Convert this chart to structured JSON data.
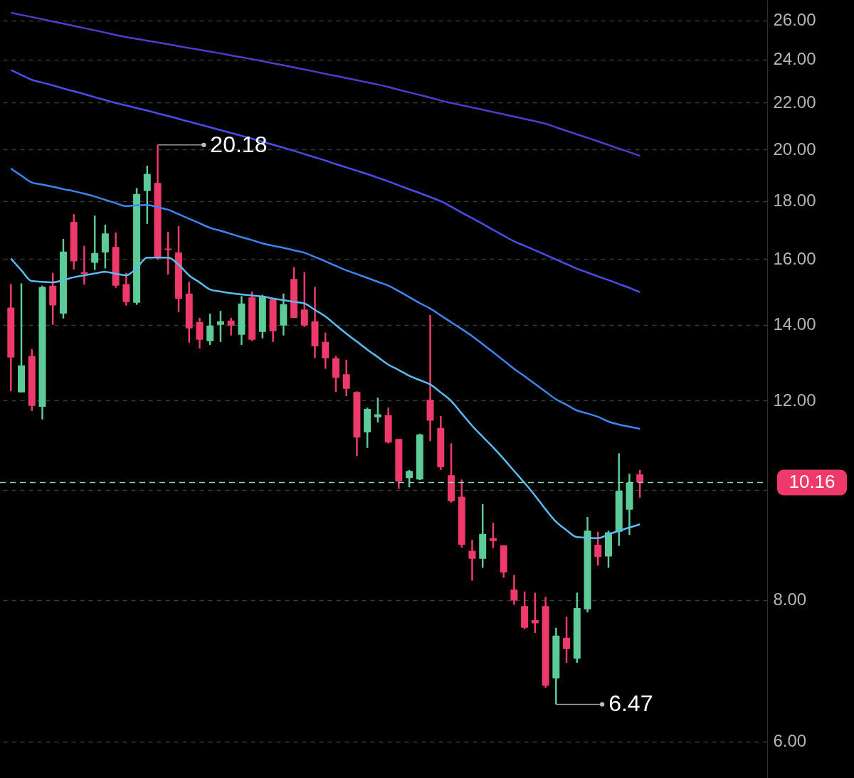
{
  "chart_data": {
    "type": "candlestick",
    "categories": [
      null,
      null,
      null,
      null,
      null,
      null,
      null,
      null,
      null,
      null,
      null,
      null,
      null,
      null,
      null,
      null,
      null,
      null,
      null,
      null,
      null,
      null,
      null,
      null,
      null,
      null,
      null,
      null,
      null,
      null,
      null,
      null,
      null,
      null,
      null,
      null,
      null,
      null,
      null,
      null,
      null,
      null,
      null,
      null,
      null,
      null,
      null,
      null,
      null,
      null,
      null,
      null,
      null,
      null,
      null,
      null,
      null,
      null,
      null,
      null,
      null
    ],
    "ohlc": [
      [
        14.5,
        15.21,
        12.23,
        13.1
      ],
      [
        12.2,
        15.23,
        12.2,
        12.89
      ],
      [
        13.14,
        13.32,
        11.75,
        11.87
      ],
      [
        11.85,
        15.16,
        11.55,
        15.12
      ],
      [
        15.16,
        15.56,
        14.0,
        14.56
      ],
      [
        14.32,
        16.67,
        14.18,
        16.25
      ],
      [
        17.26,
        17.53,
        15.67,
        15.93
      ],
      [
        15.58,
        16.44,
        15.19,
        15.53
      ],
      [
        15.88,
        17.48,
        15.65,
        16.2
      ],
      [
        16.22,
        17.16,
        15.7,
        16.86
      ],
      [
        16.4,
        16.89,
        15.09,
        15.16
      ],
      [
        15.21,
        15.56,
        14.56,
        14.66
      ],
      [
        14.64,
        18.49,
        14.58,
        18.27
      ],
      [
        18.38,
        19.35,
        17.19,
        19.03
      ],
      [
        18.68,
        20.18,
        15.98,
        16.05
      ],
      [
        16.35,
        16.91,
        15.51,
        16.3
      ],
      [
        16.22,
        17.11,
        14.36,
        14.76
      ],
      [
        14.92,
        15.28,
        13.5,
        13.9
      ],
      [
        14.08,
        14.2,
        13.34,
        13.58
      ],
      [
        13.54,
        14.32,
        13.44,
        13.98
      ],
      [
        14.0,
        14.4,
        13.52,
        14.1
      ],
      [
        14.12,
        14.2,
        13.7,
        13.98
      ],
      [
        13.72,
        14.84,
        13.44,
        14.62
      ],
      [
        14.8,
        14.98,
        13.54,
        13.58
      ],
      [
        13.8,
        14.88,
        13.62,
        14.84
      ],
      [
        14.74,
        14.78,
        13.52,
        13.82
      ],
      [
        13.98,
        14.92,
        13.7,
        14.6
      ],
      [
        15.37,
        15.74,
        14.2,
        14.2
      ],
      [
        14.44,
        15.58,
        13.94,
        13.98
      ],
      [
        14.1,
        15.12,
        13.08,
        13.4
      ],
      [
        13.52,
        13.78,
        12.8,
        13.08
      ],
      [
        13.08,
        13.14,
        12.21,
        12.57
      ],
      [
        12.66,
        13.04,
        12.11,
        12.29
      ],
      [
        12.21,
        12.23,
        10.72,
        11.13
      ],
      [
        11.25,
        11.83,
        10.9,
        11.8
      ],
      [
        11.6,
        12.07,
        11.48,
        11.67
      ],
      [
        11.65,
        11.83,
        11.0,
        11.02
      ],
      [
        11.1,
        11.1,
        10.03,
        10.18
      ],
      [
        10.25,
        10.42,
        10.06,
        10.4
      ],
      [
        10.22,
        11.22,
        10.21,
        11.2
      ],
      [
        12.02,
        14.28,
        11.05,
        11.52
      ],
      [
        11.35,
        11.63,
        10.42,
        10.48
      ],
      [
        10.31,
        11.0,
        9.75,
        9.78
      ],
      [
        9.87,
        10.22,
        8.9,
        8.95
      ],
      [
        8.84,
        9.04,
        8.32,
        8.7
      ],
      [
        8.7,
        9.72,
        8.54,
        9.15
      ],
      [
        9.07,
        9.36,
        8.89,
        9.02
      ],
      [
        8.94,
        8.94,
        8.37,
        8.46
      ],
      [
        8.17,
        8.42,
        7.92,
        7.99
      ],
      [
        7.9,
        8.14,
        7.54,
        7.56
      ],
      [
        7.68,
        8.12,
        7.48,
        7.63
      ],
      [
        7.9,
        8.05,
        6.69,
        6.72
      ],
      [
        6.82,
        7.56,
        6.47,
        7.44
      ],
      [
        7.41,
        7.73,
        7.04,
        7.24
      ],
      [
        7.1,
        8.12,
        7.04,
        7.87
      ],
      [
        7.85,
        9.47,
        7.8,
        9.21
      ],
      [
        8.95,
        9.19,
        8.58,
        8.73
      ],
      [
        8.74,
        9.21,
        8.54,
        9.18
      ],
      [
        9.19,
        10.78,
        8.93,
        9.99
      ],
      [
        9.61,
        10.34,
        9.13,
        10.16
      ],
      [
        10.33,
        10.42,
        9.85,
        10.16
      ]
    ],
    "colors": [
      "#ee3a6b",
      "#5ccb98",
      "#ee3a6b",
      "#5ccb98",
      "#ee3a6b",
      "#5ccb98",
      "#ee3a6b",
      "#ee3a6b",
      "#5ccb98",
      "#5ccb98",
      "#ee3a6b",
      "#ee3a6b",
      "#5ccb98",
      "#5ccb98",
      "#ee3a6b",
      "#ee3a6b",
      "#ee3a6b",
      "#ee3a6b",
      "#ee3a6b",
      "#5ccb98",
      "#5ccb98",
      "#ee3a6b",
      "#5ccb98",
      "#ee3a6b",
      "#5ccb98",
      "#ee3a6b",
      "#5ccb98",
      "#ee3a6b",
      "#ee3a6b",
      "#ee3a6b",
      "#ee3a6b",
      "#ee3a6b",
      "#ee3a6b",
      "#ee3a6b",
      "#5ccb98",
      "#5ccb98",
      "#ee3a6b",
      "#ee3a6b",
      "#5ccb98",
      "#5ccb98",
      "#ee3a6b",
      "#ee3a6b",
      "#ee3a6b",
      "#ee3a6b",
      "#ee3a6b",
      "#5ccb98",
      "#ee3a6b",
      "#ee3a6b",
      "#ee3a6b",
      "#ee3a6b",
      "#ee3a6b",
      "#ee3a6b",
      "#5ccb98",
      "#ee3a6b",
      "#5ccb98",
      "#5ccb98",
      "#ee3a6b",
      "#5ccb98",
      "#5ccb98",
      "#5ccb98",
      "#ee3a6b"
    ],
    "series": [
      {
        "type": "line",
        "color": "#5bbcf2",
        "values": [
          16.02,
          15.64,
          15.3,
          15.28,
          15.26,
          15.33,
          15.42,
          15.48,
          15.54,
          15.59,
          15.53,
          15.48,
          15.71,
          16.05,
          16.05,
          16.05,
          15.82,
          15.48,
          15.26,
          15.04,
          14.98,
          14.93,
          14.89,
          14.86,
          14.83,
          14.77,
          14.72,
          14.67,
          14.62,
          14.43,
          14.24,
          13.99,
          13.75,
          13.53,
          13.31,
          13.11,
          12.91,
          12.77,
          12.62,
          12.51,
          12.4,
          12.2,
          11.99,
          11.69,
          11.4,
          11.15,
          10.91,
          10.66,
          10.4,
          10.15,
          9.89,
          9.62,
          9.38,
          9.22,
          9.09,
          9.08,
          9.07,
          9.14,
          9.21,
          9.27,
          9.33
        ]
      },
      {
        "type": "line",
        "color": "#3d85f0",
        "values": [
          19.24,
          18.96,
          18.7,
          18.62,
          18.54,
          18.45,
          18.37,
          18.28,
          18.17,
          18.05,
          17.93,
          17.82,
          17.85,
          17.86,
          17.78,
          17.69,
          17.53,
          17.37,
          17.21,
          17.05,
          16.95,
          16.84,
          16.73,
          16.63,
          16.52,
          16.44,
          16.37,
          16.29,
          16.21,
          16.07,
          15.93,
          15.78,
          15.64,
          15.52,
          15.4,
          15.28,
          15.16,
          14.99,
          14.81,
          14.63,
          14.47,
          14.27,
          14.07,
          13.88,
          13.68,
          13.46,
          13.24,
          13.02,
          12.8,
          12.61,
          12.41,
          12.22,
          12.03,
          11.9,
          11.76,
          11.69,
          11.61,
          11.5,
          11.43,
          11.38,
          11.33
        ]
      },
      {
        "type": "line",
        "color": "#4a4ee6",
        "values": [
          23.51,
          23.27,
          23.04,
          22.91,
          22.78,
          22.64,
          22.51,
          22.38,
          22.24,
          22.11,
          21.98,
          21.87,
          21.75,
          21.64,
          21.52,
          21.41,
          21.28,
          21.16,
          21.04,
          20.92,
          20.8,
          20.68,
          20.56,
          20.44,
          20.31,
          20.19,
          20.07,
          19.94,
          19.81,
          19.68,
          19.55,
          19.41,
          19.28,
          19.15,
          19.02,
          18.88,
          18.74,
          18.59,
          18.44,
          18.3,
          18.15,
          18.0,
          17.8,
          17.59,
          17.39,
          17.19,
          16.98,
          16.78,
          16.59,
          16.44,
          16.29,
          16.14,
          15.99,
          15.84,
          15.69,
          15.57,
          15.45,
          15.33,
          15.21,
          15.09,
          14.96
        ]
      },
      {
        "type": "line",
        "color": "#4b3fc8",
        "values": [
          26.41,
          26.29,
          26.18,
          26.06,
          25.94,
          25.83,
          25.71,
          25.59,
          25.48,
          25.36,
          25.24,
          25.13,
          25.04,
          24.95,
          24.86,
          24.77,
          24.67,
          24.58,
          24.49,
          24.4,
          24.31,
          24.21,
          24.12,
          24.03,
          23.93,
          23.83,
          23.73,
          23.63,
          23.53,
          23.43,
          23.32,
          23.22,
          23.12,
          23.02,
          22.92,
          22.82,
          22.71,
          22.58,
          22.46,
          22.34,
          22.22,
          22.09,
          21.98,
          21.88,
          21.78,
          21.68,
          21.58,
          21.48,
          21.38,
          21.28,
          21.18,
          21.07,
          20.92,
          20.77,
          20.62,
          20.48,
          20.33,
          20.18,
          20.03,
          19.89,
          19.74
        ]
      }
    ],
    "ylim": [
      5.57,
      27.1
    ],
    "yticks": [
      {
        "value": 6,
        "label": "6.00"
      },
      {
        "value": 8,
        "label": "8.00"
      },
      {
        "value": 10,
        "label": null
      },
      {
        "value": 12,
        "label": "12.00"
      },
      {
        "value": 14,
        "label": "14.00"
      },
      {
        "value": 16,
        "label": "16.00"
      },
      {
        "value": 18,
        "label": "18.00"
      },
      {
        "value": 20,
        "label": "20.00"
      },
      {
        "value": 22,
        "label": "22.00"
      },
      {
        "value": 24,
        "label": "24.00"
      },
      {
        "value": 26,
        "label": "26.00"
      }
    ],
    "log": "y",
    "grid": "y",
    "tick_labels": "y",
    "ref_lines": [
      {
        "axis": "y",
        "value": 10.16,
        "label": "10.16",
        "color": "#7fd8b4",
        "line_style": "dashed"
      }
    ],
    "annotations": [
      "20.18",
      "6.47"
    ]
  }
}
